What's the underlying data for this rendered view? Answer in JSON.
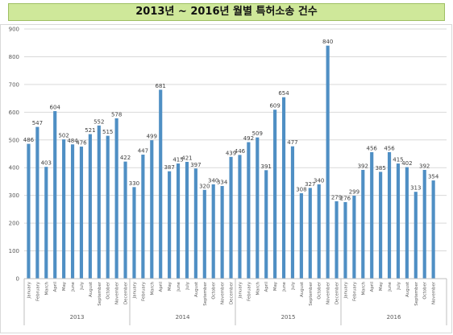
{
  "header": {
    "title": "2013년 ~ 2016년 월별 특허소송 건수"
  },
  "colors": {
    "bar": "#4f8fc4",
    "grid": "#d9d9d9",
    "title_bg": "#cfe89a"
  },
  "chart_data": {
    "type": "bar",
    "title": "2013년 ~ 2016년 월별 특허소송 건수",
    "xlabel": "",
    "ylabel": "",
    "ylim": [
      0,
      900
    ],
    "yticks": [
      0,
      100,
      200,
      300,
      400,
      500,
      600,
      700,
      800,
      900
    ],
    "grid": true,
    "legend": "none",
    "groups": [
      {
        "year": "2013",
        "months": [
          "January",
          "February",
          "March",
          "April",
          "May",
          "June",
          "July",
          "August",
          "September",
          "October",
          "November",
          "December"
        ],
        "values": [
          486,
          547,
          403,
          604,
          502,
          484,
          476,
          521,
          552,
          515,
          578,
          422
        ]
      },
      {
        "year": "2014",
        "months": [
          "January",
          "February",
          "March",
          "April",
          "May",
          "June",
          "July",
          "August",
          "September",
          "October",
          "November",
          "December"
        ],
        "values": [
          330,
          447,
          499,
          681,
          387,
          415,
          421,
          397,
          320,
          340,
          334,
          439
        ]
      },
      {
        "year": "2015",
        "months": [
          "January",
          "February",
          "March",
          "April",
          "May",
          "June",
          "July",
          "August",
          "September",
          "October",
          "November",
          "December"
        ],
        "values": [
          446,
          492,
          509,
          391,
          609,
          654,
          477,
          308,
          327,
          340,
          840,
          279
        ]
      },
      {
        "year": "2016",
        "months": [
          "January",
          "February",
          "March",
          "April",
          "May",
          "June",
          "July",
          "August",
          "September",
          "October",
          "November"
        ],
        "values": [
          276,
          299,
          392,
          456,
          385,
          456,
          415,
          402,
          313,
          392,
          354
        ]
      }
    ]
  }
}
